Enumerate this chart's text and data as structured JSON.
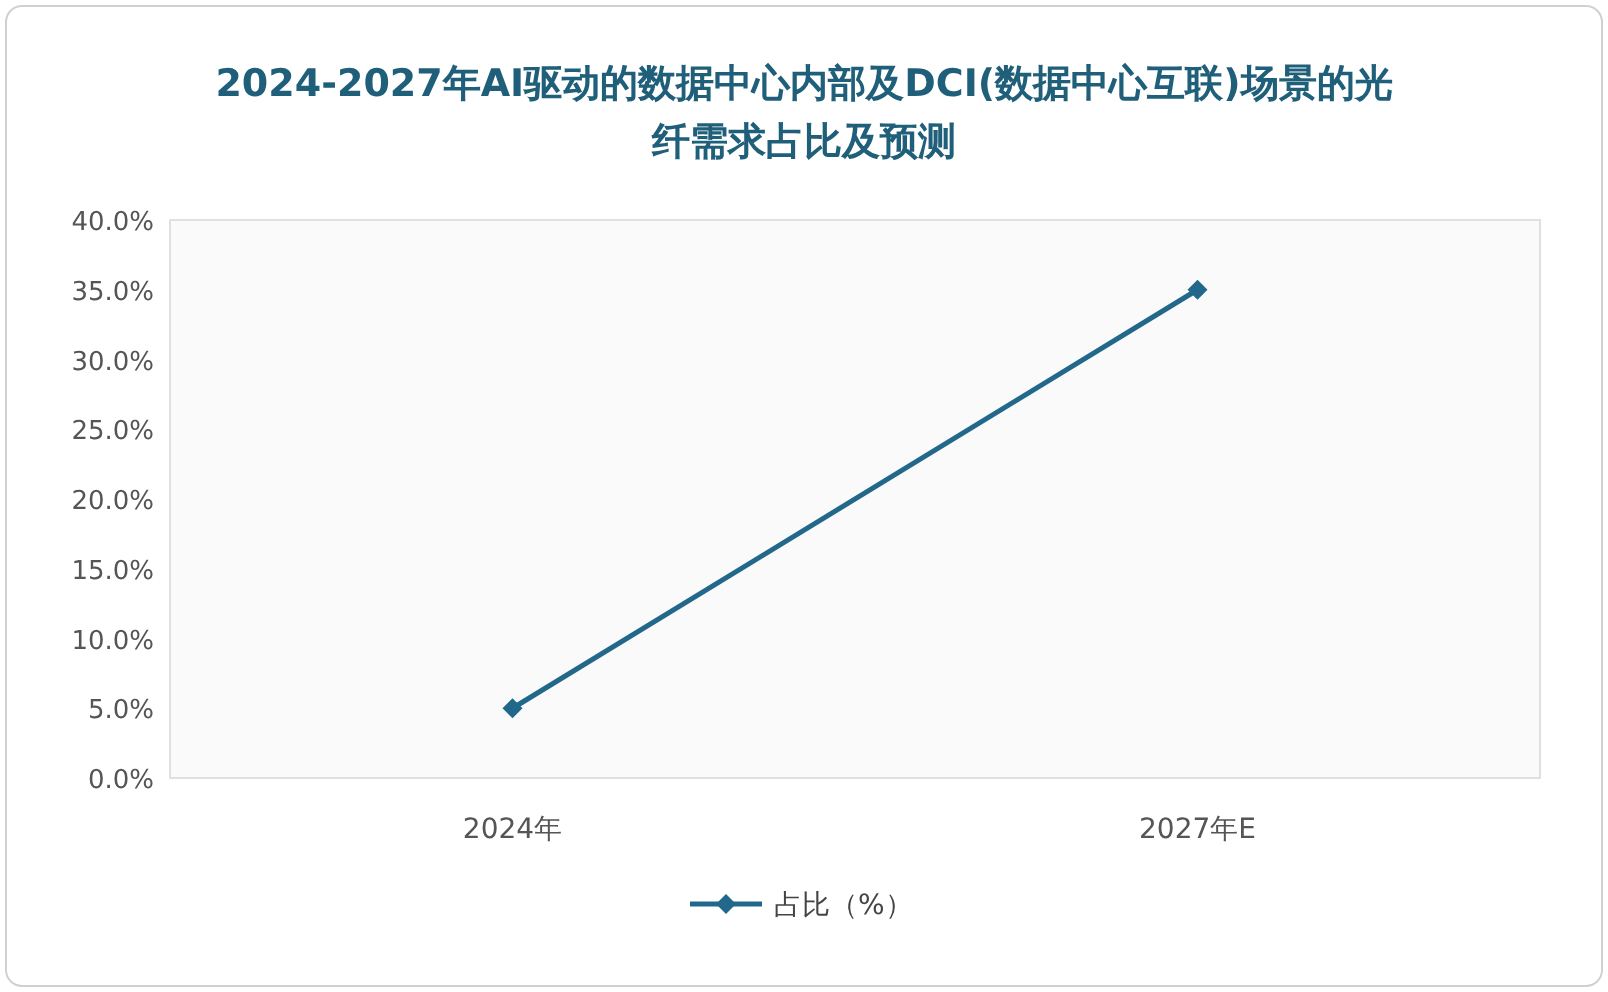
{
  "chart_data": {
    "type": "line",
    "title": "2024-2027年AI驱动的数据中心内部及DCI(数据中心互联)场景的光纤需求占比及预测",
    "categories": [
      "2024年",
      "2027年E"
    ],
    "series": [
      {
        "name": "占比（%）",
        "color": "#22688a",
        "values": [
          5.0,
          35.0
        ]
      }
    ],
    "ylim": [
      0,
      40
    ],
    "yticks": [
      {
        "value": 0,
        "label": "0.0%"
      },
      {
        "value": 5,
        "label": "5.0%"
      },
      {
        "value": 10,
        "label": "10.0%"
      },
      {
        "value": 15,
        "label": "15.0%"
      },
      {
        "value": 20,
        "label": "20.0%"
      },
      {
        "value": 25,
        "label": "25.0%"
      },
      {
        "value": 30,
        "label": "30.0%"
      },
      {
        "value": 35,
        "label": "35.0%"
      },
      {
        "value": 40,
        "label": "40.0%"
      }
    ],
    "grid": false,
    "legend": "bottom",
    "marker": "diamond",
    "line_style": "solid"
  }
}
